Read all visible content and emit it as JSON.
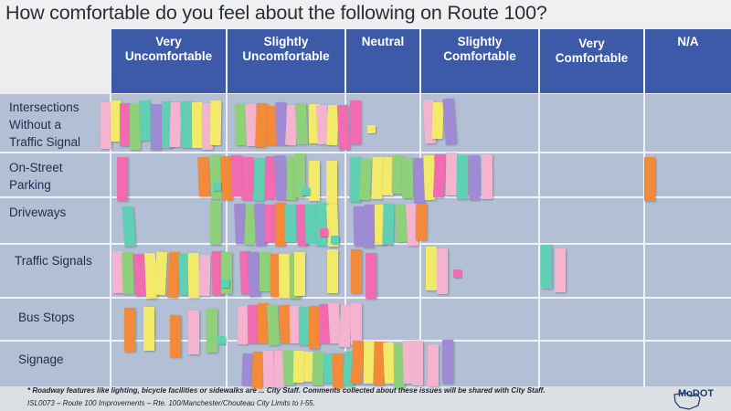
{
  "title": "How comfortable do you feel about the following on Route 100?",
  "columns": [
    {
      "label": "Very\nUncomfortable",
      "x": 0
    },
    {
      "label": "Slightly\nUncomfortable",
      "x": 0
    },
    {
      "label": "Neutral",
      "x": 0
    },
    {
      "label": "Slightly\nComfortable",
      "x": 0
    },
    {
      "label": "Very\nComfortable",
      "x": 0
    },
    {
      "label": "N/A",
      "x": 0
    }
  ],
  "rows": [
    {
      "label": "Intersections\nWithout a\nTraffic Signal"
    },
    {
      "label": "On-Street\nParking"
    },
    {
      "label": "Driveways"
    },
    {
      "label": "Traffic Signals"
    },
    {
      "label": "Bus Stops"
    },
    {
      "label": "Signage"
    }
  ],
  "footnote": "* Roadway features like lighting, bicycle facilities or sidewalks are ... City Staff. Comments collected about these issues will be shared with City Staff.",
  "footnote2": "ISL0073 – Route 100 Improvements – Rte. 100/Manchester/Chouteau City Limits to I-55.",
  "logo_text": "MoDOT",
  "colors": {
    "header": "#3d5aa8",
    "grid": "#b2bfd5",
    "pink": "#f06bb0",
    "lightpink": "#f4b3cf",
    "purple": "#9f8bd4",
    "green": "#8fd07a",
    "yellow": "#f2ea6a",
    "orange": "#f28a3a",
    "teal": "#5fd0b4"
  }
}
